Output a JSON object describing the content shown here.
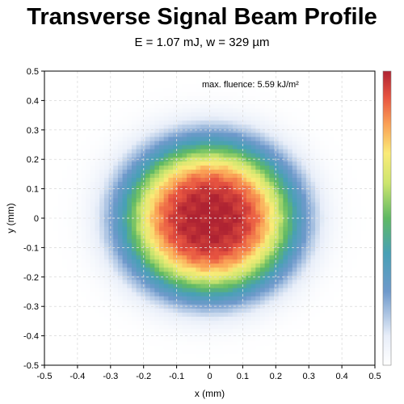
{
  "chart_data": {
    "type": "heatmap",
    "title": "Transverse Signal Beam Profile",
    "subtitle": "E = 1.07 mJ, w = 329 µm",
    "xlabel": "x (mm)",
    "ylabel": "y (mm)",
    "xlim": [
      -0.5,
      0.5
    ],
    "ylim": [
      -0.5,
      0.5
    ],
    "xticks": [
      "-0.5",
      "-0.4",
      "-0.3",
      "-0.2",
      "-0.1",
      "0",
      "0.1",
      "0.2",
      "0.3",
      "0.4",
      "0.5"
    ],
    "yticks": [
      "-0.5",
      "-0.4",
      "-0.3",
      "-0.2",
      "-0.1",
      "0",
      "0.1",
      "0.2",
      "0.3",
      "0.4",
      "0.5"
    ],
    "grid": true,
    "colormap": "Spectral_r",
    "colorbar": true,
    "annotation": "max. fluence: 5.59 kJ/m²",
    "beam": {
      "center": [
        0,
        0
      ],
      "profile": "super-gaussian",
      "radius_mm": 0.329,
      "peak_fluence_kJ_m2": 5.59
    }
  }
}
